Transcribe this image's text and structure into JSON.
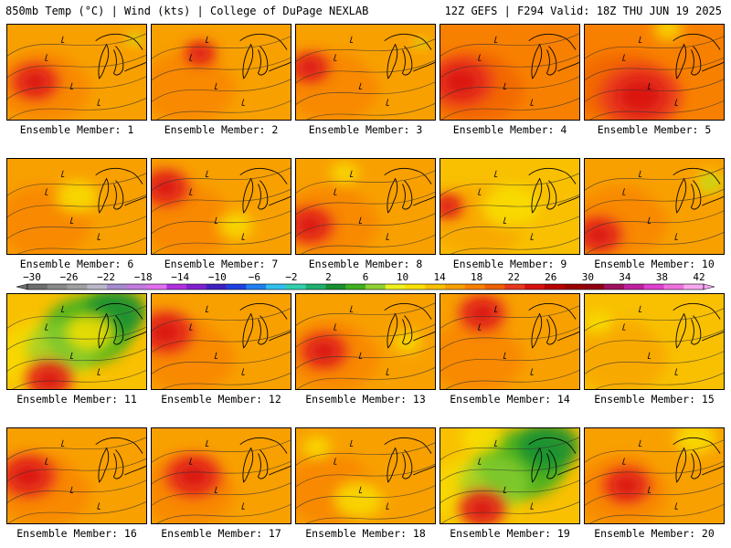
{
  "header": {
    "left": "850mb Temp (°C) | Wind (kts) | College of DuPage NEXLAB",
    "right": "12Z GEFS | F294 Valid: 18Z THU JUN 19 2025"
  },
  "colorbar": {
    "labels": [
      "−30",
      "−26",
      "−22",
      "−18",
      "−14",
      "−10",
      "−6",
      "−2",
      "2",
      "6",
      "10",
      "14",
      "18",
      "22",
      "26",
      "30",
      "34",
      "38",
      "42"
    ],
    "colors": [
      "#6e6e6e",
      "#8a8a8a",
      "#a0a0a0",
      "#b8b8c8",
      "#a78bd0",
      "#c27be0",
      "#e070f0",
      "#b030e0",
      "#8020d0",
      "#4020c0",
      "#2040e0",
      "#2080f0",
      "#30c0f0",
      "#30d0b0",
      "#20b070",
      "#189030",
      "#40b020",
      "#90d030",
      "#f0f020",
      "#f8e000",
      "#f8c000",
      "#f8a000",
      "#f88000",
      "#f06000",
      "#e83820",
      "#d81010",
      "#b80000",
      "#980000",
      "#900010",
      "#a01060",
      "#c020a0",
      "#e040d0",
      "#f070e0",
      "#f8a8f0"
    ]
  },
  "panels": [
    {
      "label": "Ensemble Member: 1",
      "theme": "orange",
      "hot": [
        [
          0.2,
          0.6,
          0.3
        ]
      ],
      "cool": [
        [
          0.92,
          0.15,
          0.12
        ]
      ]
    },
    {
      "label": "Ensemble Member: 2",
      "theme": "orange",
      "hot": [
        [
          0.35,
          0.3,
          0.2
        ]
      ],
      "cool": []
    },
    {
      "label": "Ensemble Member: 3",
      "theme": "orange",
      "hot": [
        [
          0.1,
          0.45,
          0.25
        ]
      ],
      "cool": [
        [
          0.9,
          0.2,
          0.1
        ]
      ]
    },
    {
      "label": "Ensemble Member: 4",
      "theme": "hot",
      "hot": [
        [
          0.15,
          0.6,
          0.4
        ]
      ],
      "cool": []
    },
    {
      "label": "Ensemble Member: 5",
      "theme": "hot",
      "hot": [
        [
          0.4,
          0.75,
          0.5
        ]
      ],
      "cool": [
        [
          0.6,
          0.05,
          0.2
        ]
      ]
    },
    {
      "label": "Ensemble Member: 6",
      "theme": "orange",
      "hot": [],
      "cool": [
        [
          0.5,
          0.4,
          0.3
        ]
      ]
    },
    {
      "label": "Ensemble Member: 7",
      "theme": "orange",
      "hot": [
        [
          0.1,
          0.3,
          0.3
        ]
      ],
      "cool": [
        [
          0.6,
          0.7,
          0.25
        ]
      ]
    },
    {
      "label": "Ensemble Member: 8",
      "theme": "orange",
      "hot": [
        [
          0.1,
          0.7,
          0.3
        ]
      ],
      "cool": [
        [
          0.35,
          0.15,
          0.2
        ]
      ]
    },
    {
      "label": "Ensemble Member: 9",
      "theme": "yellow",
      "hot": [
        [
          0.05,
          0.5,
          0.2
        ]
      ],
      "cool": [
        [
          0.5,
          0.5,
          0.4
        ]
      ]
    },
    {
      "label": "Ensemble Member: 10",
      "theme": "orange",
      "hot": [
        [
          0.1,
          0.8,
          0.3
        ]
      ],
      "cool": [
        [
          0.9,
          0.25,
          0.2
        ]
      ]
    },
    {
      "label": "Ensemble Member: 11",
      "theme": "green",
      "hot": [
        [
          0.3,
          0.9,
          0.3
        ]
      ],
      "cool": [
        [
          0.6,
          0.4,
          0.35
        ]
      ]
    },
    {
      "label": "Ensemble Member: 12",
      "theme": "orange",
      "hot": [
        [
          0.1,
          0.4,
          0.35
        ]
      ],
      "cool": []
    },
    {
      "label": "Ensemble Member: 13",
      "theme": "orange",
      "hot": [
        [
          0.2,
          0.6,
          0.3
        ]
      ],
      "cool": [
        [
          0.8,
          0.5,
          0.2
        ]
      ]
    },
    {
      "label": "Ensemble Member: 14",
      "theme": "orange",
      "hot": [
        [
          0.3,
          0.2,
          0.3
        ]
      ],
      "cool": []
    },
    {
      "label": "Ensemble Member: 15",
      "theme": "yellow",
      "hot": [],
      "cool": [
        [
          0.1,
          0.3,
          0.2
        ]
      ]
    },
    {
      "label": "Ensemble Member: 16",
      "theme": "orange",
      "hot": [
        [
          0.15,
          0.5,
          0.35
        ]
      ],
      "cool": []
    },
    {
      "label": "Ensemble Member: 17",
      "theme": "orange",
      "hot": [
        [
          0.3,
          0.5,
          0.35
        ]
      ],
      "cool": []
    },
    {
      "label": "Ensemble Member: 18",
      "theme": "orange",
      "hot": [],
      "cool": [
        [
          0.45,
          0.75,
          0.35
        ],
        [
          0.15,
          0.2,
          0.2
        ]
      ]
    },
    {
      "label": "Ensemble Member: 19",
      "theme": "green",
      "hot": [
        [
          0.3,
          0.85,
          0.3
        ]
      ],
      "cool": [
        [
          0.3,
          0.1,
          0.3
        ]
      ]
    },
    {
      "label": "Ensemble Member: 20",
      "theme": "orange",
      "hot": [
        [
          0.3,
          0.6,
          0.3
        ]
      ],
      "cool": [
        [
          0.8,
          0.1,
          0.3
        ]
      ]
    }
  ]
}
